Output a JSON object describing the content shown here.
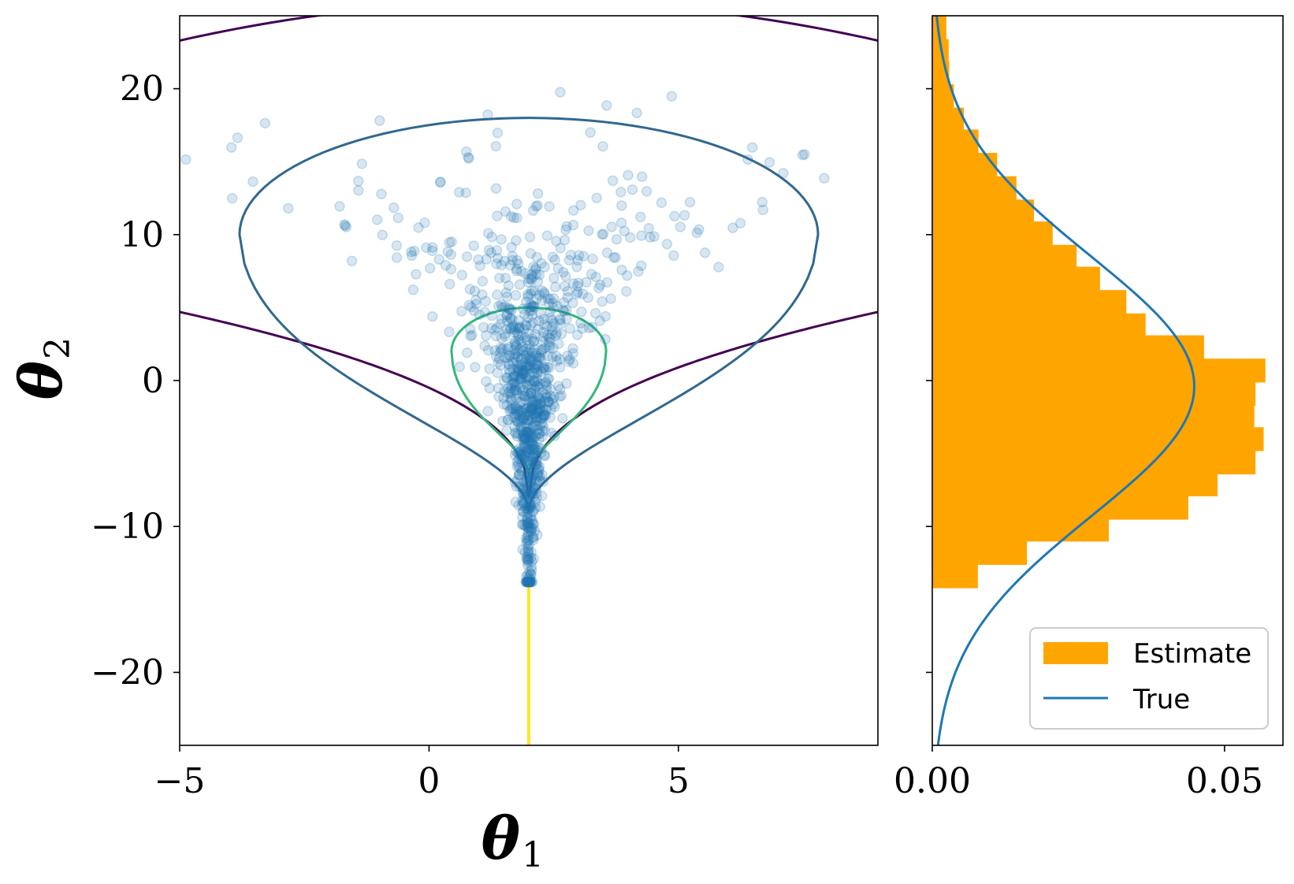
{
  "chart_data": [
    {
      "type": "scatter",
      "xlabel": "θ",
      "xlabel_sub": "1",
      "ylabel": "θ",
      "ylabel_sub": "2",
      "xlim": [
        -5,
        9
      ],
      "ylim": [
        -25,
        25
      ],
      "xticks": [
        -5,
        0,
        5
      ],
      "xtick_labels": [
        "−5",
        "0",
        "5"
      ],
      "yticks": [
        -20,
        -10,
        0,
        10,
        20
      ],
      "ytick_labels": [
        "−20",
        "−10",
        "0",
        "10",
        "20"
      ],
      "contour_colors": [
        "#440154",
        "#31688e",
        "#35b779",
        "#fde725"
      ],
      "contours": [
        {
          "level": 1,
          "color": "#440154",
          "upper_top": 26,
          "upper_edge": 23.3,
          "lower_edge": 4.7,
          "neck_y": -8
        },
        {
          "level": 2,
          "color": "#31688e",
          "top": 18,
          "widest_y": 10,
          "left_x": -3.8,
          "right_x": 7.8,
          "tip_y": -9
        },
        {
          "level": 3,
          "color": "#35b779",
          "top": 5,
          "widest_y": 2,
          "left_x": 0.45,
          "right_x": 3.55,
          "tip_y": -6.5
        },
        {
          "level": 4,
          "color": "#fde725",
          "x": 2,
          "y_range": [
            -25,
            -14
          ]
        }
      ],
      "scatter_color": "#1f77b4",
      "scatter_alpha": 0.18,
      "n_points": 1000
    },
    {
      "type": "histogram",
      "orientation": "horizontal",
      "xlim": [
        0,
        0.06
      ],
      "ylim": [
        -25,
        25
      ],
      "xticks": [
        0.0,
        0.05
      ],
      "xtick_labels": [
        "0.00",
        "0.05"
      ],
      "bin_edges": [
        -14.2,
        -12.6,
        -11.0,
        -9.5,
        -7.9,
        -6.4,
        -4.8,
        -3.2,
        -1.7,
        -0.1,
        1.5,
        3.1,
        4.6,
        6.2,
        7.8,
        9.3,
        10.9,
        12.4,
        14.0,
        15.6,
        17.2,
        18.7,
        20.3,
        21.9,
        23.4,
        25.0
      ],
      "hist_values": [
        0.0078,
        0.0162,
        0.0302,
        0.0438,
        0.0488,
        0.0553,
        0.0567,
        0.0551,
        0.0553,
        0.057,
        0.0465,
        0.0365,
        0.0332,
        0.0287,
        0.0247,
        0.0206,
        0.0174,
        0.0144,
        0.0111,
        0.0079,
        0.0054,
        0.0037,
        0.0029,
        0.0028,
        0.0024
      ],
      "true_curve": {
        "type": "normal",
        "mean": -0.4,
        "std": 8.9
      },
      "legend": {
        "position": "lower right",
        "entries": [
          "Estimate",
          "True"
        ]
      },
      "estimate_color": "#ffa500",
      "true_color": "#1f77b4"
    }
  ]
}
